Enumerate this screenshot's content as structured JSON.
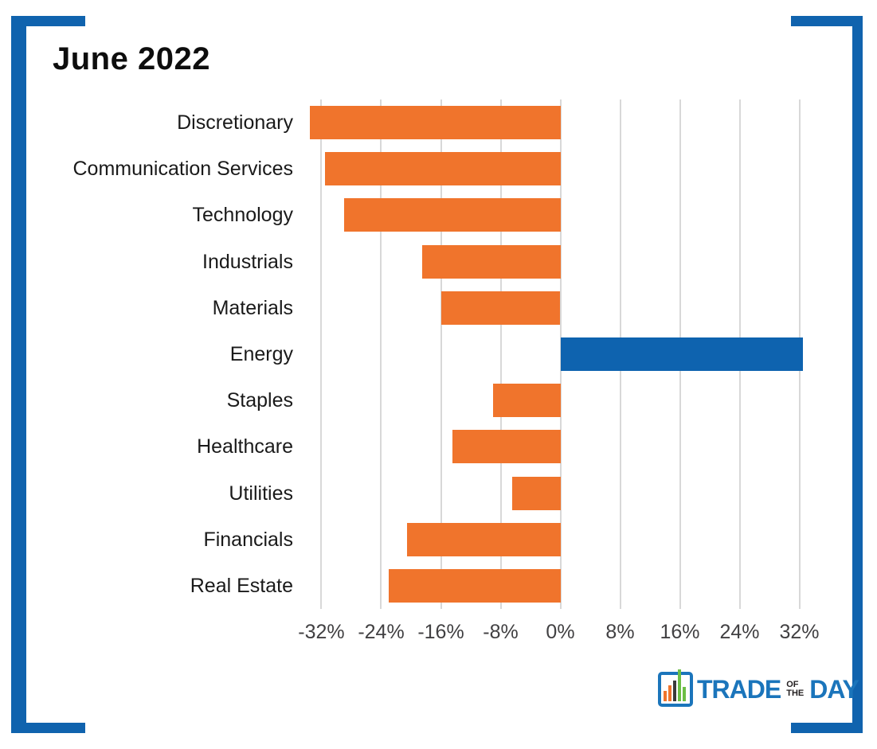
{
  "chart_data": {
    "type": "bar",
    "orientation": "horizontal",
    "title": "June 2022",
    "categories": [
      "Discretionary",
      "Communication Services",
      "Technology",
      "Industrials",
      "Materials",
      "Energy",
      "Staples",
      "Healthcare",
      "Utilities",
      "Financials",
      "Real Estate"
    ],
    "values": [
      -33.5,
      -31.5,
      -29,
      -18.5,
      -16,
      32.5,
      -9,
      -14.5,
      -6.5,
      -20.5,
      -23
    ],
    "unit": "%",
    "xlim": [
      -36,
      36
    ],
    "x_ticks": [
      {
        "value": -32,
        "label": "-32%"
      },
      {
        "value": -24,
        "label": "-24%"
      },
      {
        "value": -16,
        "label": "-16%"
      },
      {
        "value": -8,
        "label": "-8%"
      },
      {
        "value": 0,
        "label": "0%"
      },
      {
        "value": 8,
        "label": "8%"
      },
      {
        "value": 16,
        "label": "16%"
      },
      {
        "value": 24,
        "label": "24%"
      },
      {
        "value": 32,
        "label": "32%"
      }
    ],
    "grid": true,
    "legend": "none",
    "xlabel": "",
    "ylabel": "",
    "negative_color": "#F0742C",
    "positive_color": "#0E63AF"
  },
  "colors": {
    "frame": "#1063AE",
    "gridline": "#D8D8D8",
    "axis_text": "#414042",
    "label_text": "#1A1A1A",
    "title_text": "#0D0D0D",
    "logo_blue": "#1B75BB"
  },
  "logo": {
    "trade": "TRADE",
    "of": "OF",
    "the": "THE",
    "day": "DAY"
  }
}
